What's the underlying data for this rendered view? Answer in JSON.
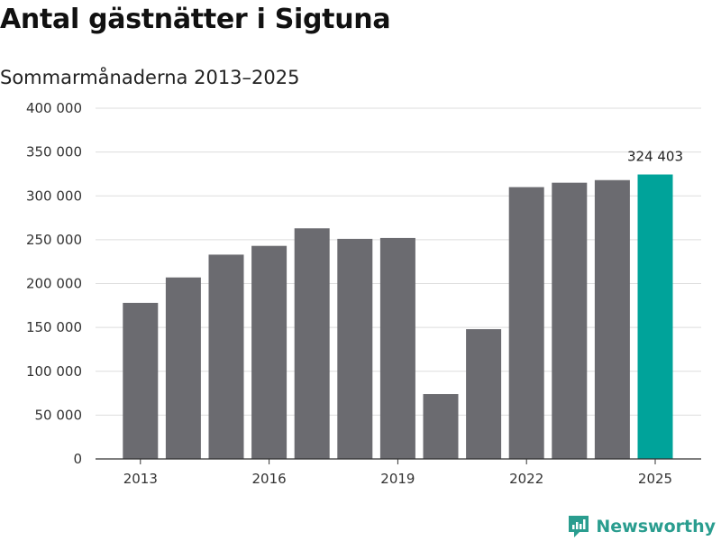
{
  "title": "Antal gästnätter i Sigtuna",
  "subtitle": "Sommarmånaderna 2013–2025",
  "brand": "Newsworthy",
  "colors": {
    "bar": "#6b6b70",
    "highlight": "#00a39a",
    "grid": "#dddddd",
    "axis": "#333333"
  },
  "chart_data": {
    "type": "bar",
    "categories": [
      "2013",
      "2014",
      "2015",
      "2016",
      "2017",
      "2018",
      "2019",
      "2020",
      "2021",
      "2022",
      "2023",
      "2024",
      "2025"
    ],
    "values": [
      178000,
      207000,
      233000,
      243000,
      263000,
      251000,
      252000,
      74000,
      148000,
      310000,
      315000,
      318000,
      324403
    ],
    "x_tick_labels": [
      "2013",
      "2016",
      "2019",
      "2022",
      "2025"
    ],
    "y_ticks": [
      0,
      50000,
      100000,
      150000,
      200000,
      250000,
      300000,
      350000,
      400000
    ],
    "y_tick_labels": [
      "0",
      "50 000",
      "100 000",
      "150 000",
      "200 000",
      "250 000",
      "300 000",
      "350 000",
      "400 000"
    ],
    "ylim": [
      0,
      400000
    ],
    "highlight_category": "2025",
    "annotations": [
      {
        "category": "2025",
        "text": "324 403"
      }
    ],
    "grid": true
  }
}
